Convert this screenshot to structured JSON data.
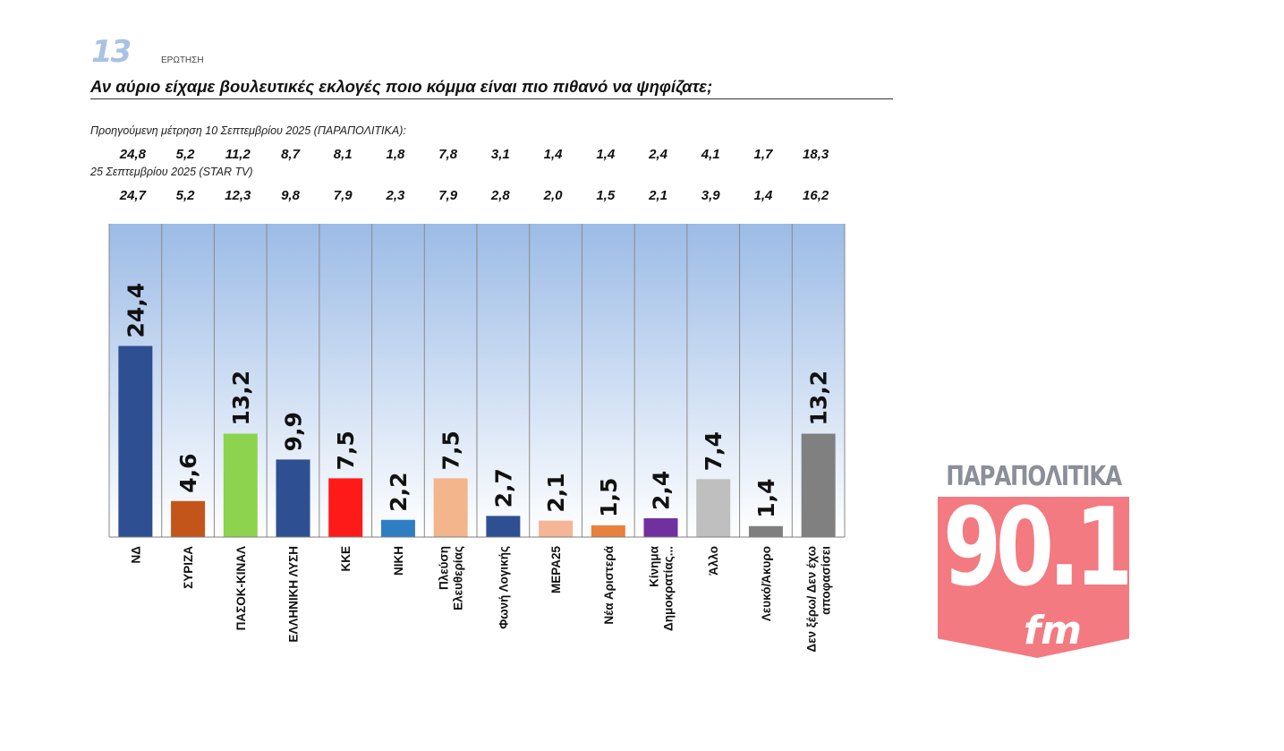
{
  "header": {
    "question_number": "13",
    "question_label": "ΕΡΩΤΗΣΗ",
    "question_text": "Αν αύριο είχαμε βουλευτικές εκλογές ποιο κόμμα είναι πιο πιθανό να ψηφίζατε;"
  },
  "previous": [
    {
      "label": "Προηγούμενη μέτρηση 10 Σεπτεμβρίου 2025 (ΠΑΡΑΠΟΛΙΤΙΚΑ):",
      "values": [
        "24,8",
        "5,2",
        "11,2",
        "8,7",
        "8,1",
        "1,8",
        "7,8",
        "3,1",
        "1,4",
        "1,4",
        "2,4",
        "4,1",
        "1,7",
        "18,3"
      ]
    },
    {
      "label": "25 Σεπτεμβρίου 2025 (STAR TV)",
      "values": [
        "24,7",
        "5,2",
        "12,3",
        "9,8",
        "7,9",
        "2,3",
        "7,9",
        "2,8",
        "2,0",
        "1,5",
        "2,1",
        "3,9",
        "1,4",
        "16,2"
      ]
    }
  ],
  "chart_data": {
    "type": "bar",
    "categories": [
      [
        "ΝΔ"
      ],
      [
        "ΣΥΡΙΖΑ"
      ],
      [
        "ΠΑΣΟΚ-ΚΙΝΑΛ"
      ],
      [
        "ΕΛΛΗΝΙΚΗ ΛΥΣΗ"
      ],
      [
        "ΚΚΕ"
      ],
      [
        "ΝΙΚΗ"
      ],
      [
        "Πλεύση",
        "Ελευθερίας"
      ],
      [
        "Φωνή Λογικής"
      ],
      [
        "ΜΕΡΑ25"
      ],
      [
        "Νέα Αριστερά"
      ],
      [
        "Κίνημα",
        "Δημοκρατίας..."
      ],
      [
        "Άλλο"
      ],
      [
        "Λευκό/Άκυρο"
      ],
      [
        "Δεν ξέρω/ Δεν έχω",
        "αποφασίσει"
      ]
    ],
    "values": [
      24.4,
      4.6,
      13.2,
      9.9,
      7.5,
      2.2,
      7.5,
      2.7,
      2.1,
      1.5,
      2.4,
      7.4,
      1.4,
      13.2
    ],
    "value_labels": [
      "24,4",
      "4,6",
      "13,2",
      "9,9",
      "7,5",
      "2,2",
      "7,5",
      "2,7",
      "2,1",
      "1,5",
      "2,4",
      "7,4",
      "1,4",
      "13,2"
    ],
    "colors": [
      "#2f4f93",
      "#c4551a",
      "#8dd34e",
      "#2f4f93",
      "#ff1a1a",
      "#2e7ec4",
      "#f2b58c",
      "#2f4f93",
      "#f5b697",
      "#e8803e",
      "#7030a0",
      "#bfbfbf",
      "#7f7f7f",
      "#808080"
    ],
    "background_gradient": [
      "#9cbbe6",
      "#ffffff"
    ],
    "grid": false,
    "legend": "none"
  },
  "logo": {
    "top_text": "ΠΑΡΑΠΟΛΙΤΙΚΑ",
    "number": "90.1",
    "suffix": "fm"
  }
}
